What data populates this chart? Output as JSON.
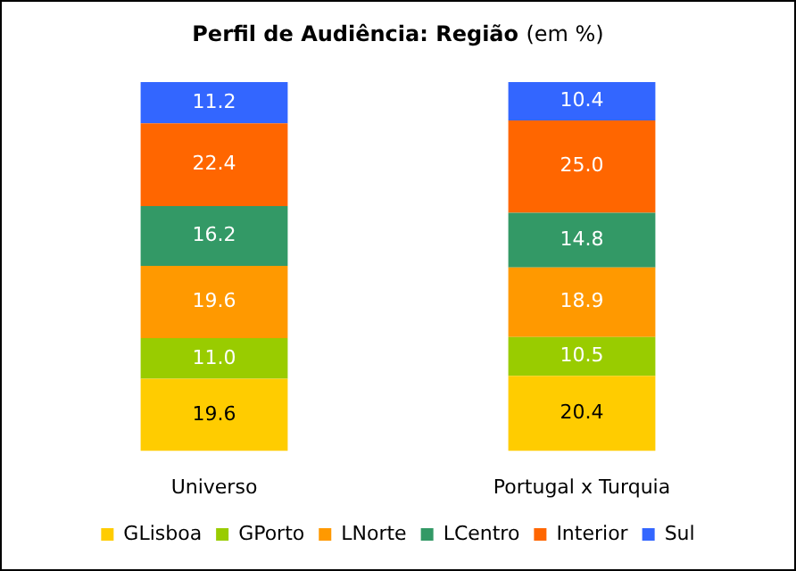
{
  "chart_data": {
    "type": "bar",
    "title": "Perfil de Audiência: Região (em %)",
    "categories": [
      "Universo",
      "Portugal x Turquia"
    ],
    "stacked": true,
    "legend": "bottom",
    "series": [
      {
        "name": "GLisboa",
        "color": "#ffcc00",
        "values": [
          19.6,
          20.4
        ],
        "value_labels": [
          "19.6",
          "20.4"
        ]
      },
      {
        "name": "GPorto",
        "color": "#99cc00",
        "values": [
          11.0,
          10.5
        ],
        "value_labels": [
          "11.0",
          "10.5"
        ]
      },
      {
        "name": "LNorte",
        "color": "#ff9900",
        "values": [
          19.6,
          18.9
        ],
        "value_labels": [
          "19.6",
          "18.9"
        ]
      },
      {
        "name": "LCentro",
        "color": "#339966",
        "values": [
          16.2,
          14.8
        ],
        "value_labels": [
          "16.2",
          "14.8"
        ]
      },
      {
        "name": "Interior",
        "color": "#ff6600",
        "values": [
          22.4,
          25.0
        ],
        "value_labels": [
          "22.4",
          "25.0"
        ]
      },
      {
        "name": "Sul",
        "color": "#3366ff",
        "values": [
          11.2,
          10.4
        ],
        "value_labels": [
          "11.2",
          "10.4"
        ]
      }
    ]
  }
}
